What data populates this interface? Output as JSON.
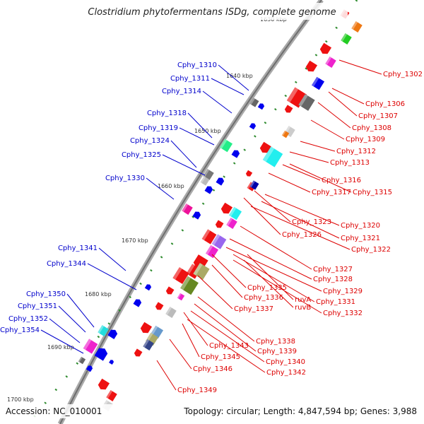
{
  "title": "Clostridium phytofermentans ISDg, complete genome",
  "footer": {
    "accession": "Accession: NC_010001",
    "summary": "Topology: circular; Length: 4,847,594 bp; Genes: 3,988"
  },
  "colors": {
    "forward_label": "#0000cc",
    "reverse_label": "#dd0000",
    "backbone": "#8a8a8a",
    "tick": "#2e8b2e"
  },
  "kbp_marks": [
    "1630 kbp",
    "1640 kbp",
    "1650 kbp",
    "1660 kbp",
    "1670 kbp",
    "1680 kbp",
    "1690 kbp",
    "1700 kbp"
  ],
  "forward_genes": [
    "Cphy_1310",
    "Cphy_1311",
    "Cphy_1314",
    "Cphy_1318",
    "Cphy_1319",
    "Cphy_1324",
    "Cphy_1325",
    "Cphy_1330",
    "Cphy_1341",
    "Cphy_1344",
    "Cphy_1350",
    "Cphy_1351",
    "Cphy_1352",
    "Cphy_1354"
  ],
  "reverse_genes": [
    "Cphy_1302",
    "Cphy_1306",
    "Cphy_1307",
    "Cphy_1308",
    "Cphy_1309",
    "Cphy_1312",
    "Cphy_1313",
    "Cphy_1316",
    "Cphy_1317",
    "Cphy_1315",
    "Cphy_1323",
    "Cphy_1320",
    "Cphy_1326",
    "Cphy_1321",
    "Cphy_1322",
    "Cphy_1327",
    "Cphy_1328",
    "Cphy_1335",
    "Cphy_1329",
    "Cphy_1336",
    "ruvA",
    "Cphy_1331",
    "Cphy_1337",
    "ruvB",
    "Cphy_1332",
    "Cphy_1338",
    "Cphy_1343",
    "Cphy_1339",
    "Cphy_1345",
    "Cphy_1340",
    "Cphy_1346",
    "Cphy_1342",
    "Cphy_1349"
  ]
}
